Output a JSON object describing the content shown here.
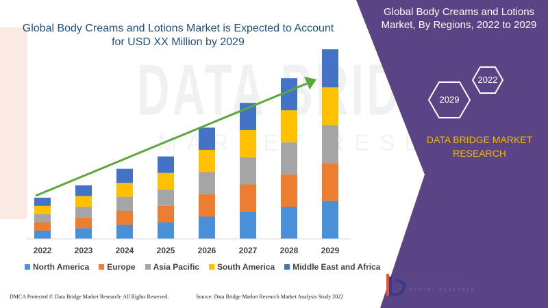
{
  "chart_title_line1": "Global Body Creams and Lotions Market is Expected to Account",
  "chart_title_line2": "for USD XX Million by 2029",
  "panel": {
    "title_line1": "Global Body Creams and Lotions",
    "title_line2": "Market, By Regions, 2022 to 2029",
    "hex_top": "2022",
    "hex_bottom": "2029",
    "brand_line1": "DATA BRIDGE MARKET",
    "brand_line2": "RESEARCH",
    "logo_line1": "DATA BRIDGE",
    "logo_line2": "MARKET RESEARCH"
  },
  "watermark": {
    "line1": "DATA BRIDGE",
    "line2": "MARKET RESEARCH"
  },
  "footer": {
    "left": "DMCA Protected © Data Bridge Market Research- All Rights Reserved.",
    "right": "Source: Data Bridge Market Research Market Analysis Study 2022"
  },
  "colors": {
    "purple_panel": "#5a4485",
    "arrow": "#5aa83b",
    "brand_yellow": "#f5b800",
    "title_blue": "#1f4e79"
  },
  "chart_data": {
    "type": "bar",
    "stacked": true,
    "categories": [
      "2022",
      "2023",
      "2024",
      "2025",
      "2026",
      "2027",
      "2028",
      "2029"
    ],
    "series": [
      {
        "name": "North America",
        "color": "#4a90d9",
        "values": [
          10,
          13,
          17,
          20,
          27,
          33,
          39,
          46
        ]
      },
      {
        "name": "Europe",
        "color": "#ed7d31",
        "values": [
          10,
          13,
          17,
          20,
          27,
          33,
          39,
          46
        ]
      },
      {
        "name": "Asia Pacific",
        "color": "#a5a5a5",
        "values": [
          10,
          13,
          17,
          20,
          27,
          33,
          39,
          46
        ]
      },
      {
        "name": "South America",
        "color": "#ffc000",
        "values": [
          10,
          13,
          17,
          20,
          27,
          33,
          39,
          46
        ]
      },
      {
        "name": "Middle East and Africa",
        "color": "#4472c4",
        "values": [
          10,
          13,
          17,
          20,
          27,
          33,
          39,
          46
        ]
      }
    ],
    "ylim": [
      0,
      240
    ],
    "legend_position": "bottom",
    "grid": false,
    "annotation": "trend arrow rising from 2022 to 2029"
  }
}
